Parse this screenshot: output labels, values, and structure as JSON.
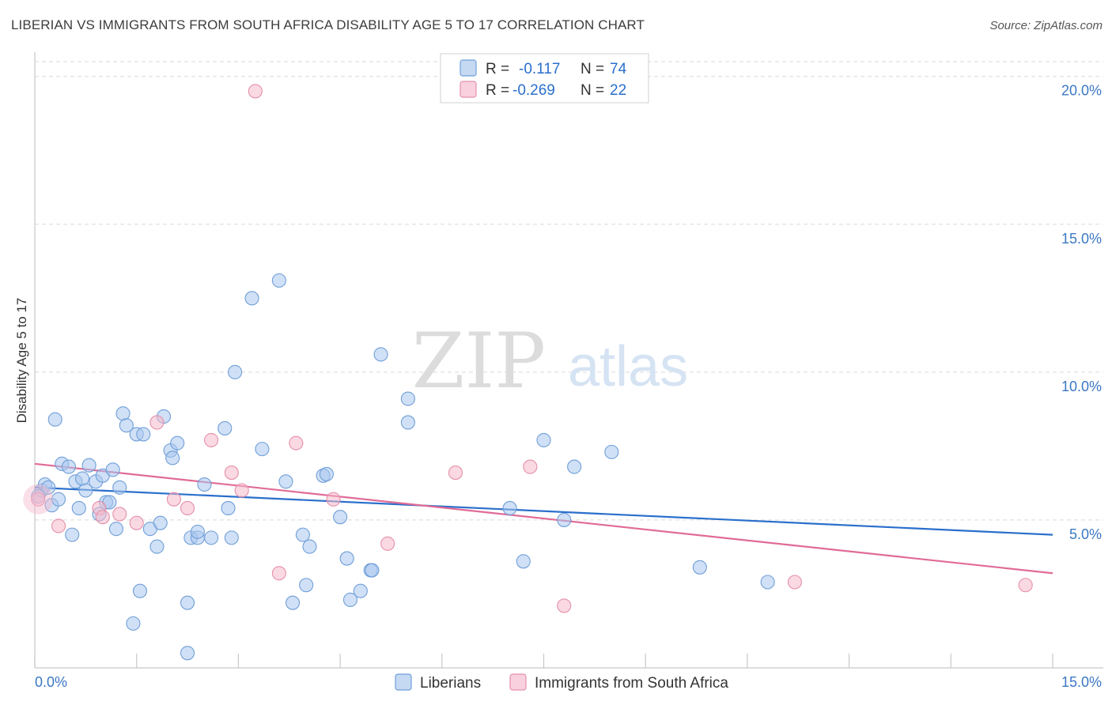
{
  "title": "LIBERIAN VS IMMIGRANTS FROM SOUTH AFRICA DISABILITY AGE 5 TO 17 CORRELATION CHART",
  "source": "Source: ZipAtlas.com",
  "watermark": {
    "zip": "ZIP",
    "atlas": "atlas"
  },
  "colors": {
    "blue_fill": "#a9c7ee",
    "blue_stroke": "#6f9fd8",
    "blue_line": "#2a6fcb",
    "pink_fill": "#f5b9cb",
    "pink_stroke": "#e58fab",
    "pink_line": "#e06b97",
    "tick_label": "#3b78c4",
    "grid": "#d9d9d9"
  },
  "legend_top": {
    "rows": [
      {
        "r_label": "R =",
        "r_value": "-0.117",
        "n_label": "N =",
        "n_value": "74"
      },
      {
        "r_label": "R =",
        "r_value": "-0.269",
        "n_label": "N =",
        "n_value": "22"
      }
    ]
  },
  "chart_data": {
    "type": "scatter",
    "title": "LIBERIAN VS IMMIGRANTS FROM SOUTH AFRICA DISABILITY AGE 5 TO 17 CORRELATION CHART",
    "xlabel": "",
    "ylabel": "Disability Age 5 to 17",
    "xlim": [
      0,
      15
    ],
    "ylim": [
      0,
      20.5
    ],
    "x_tick_labels": [
      "0.0%",
      "15.0%"
    ],
    "y_ticks": [
      5,
      10,
      15,
      20
    ],
    "y_tick_labels": [
      "5.0%",
      "10.0%",
      "15.0%",
      "20.0%"
    ],
    "grid": true,
    "legend_position": "bottom",
    "series": [
      {
        "name": "Liberians",
        "r": -0.117,
        "n": 74,
        "trend": {
          "x": [
            0,
            15
          ],
          "y": [
            6.1,
            4.5
          ]
        },
        "points": [
          [
            0.1,
            6.0
          ],
          [
            0.15,
            6.2
          ],
          [
            0.2,
            6.1
          ],
          [
            0.25,
            5.5
          ],
          [
            0.3,
            8.4
          ],
          [
            0.35,
            5.7
          ],
          [
            0.4,
            6.9
          ],
          [
            0.5,
            6.8
          ],
          [
            0.55,
            4.5
          ],
          [
            0.6,
            6.3
          ],
          [
            0.65,
            5.4
          ],
          [
            0.7,
            6.4
          ],
          [
            0.75,
            6.0
          ],
          [
            0.8,
            6.85
          ],
          [
            0.9,
            6.3
          ],
          [
            0.95,
            5.2
          ],
          [
            1.0,
            6.5
          ],
          [
            1.05,
            5.6
          ],
          [
            1.1,
            5.6
          ],
          [
            1.15,
            6.7
          ],
          [
            1.2,
            4.7
          ],
          [
            1.25,
            6.1
          ],
          [
            1.3,
            8.6
          ],
          [
            1.35,
            8.2
          ],
          [
            1.45,
            1.5
          ],
          [
            1.5,
            7.9
          ],
          [
            1.55,
            2.6
          ],
          [
            1.6,
            7.9
          ],
          [
            1.7,
            4.7
          ],
          [
            1.8,
            4.1
          ],
          [
            1.85,
            4.9
          ],
          [
            1.9,
            8.5
          ],
          [
            2.0,
            7.35
          ],
          [
            2.03,
            7.1
          ],
          [
            2.1,
            7.6
          ],
          [
            2.25,
            0.5
          ],
          [
            2.25,
            2.2
          ],
          [
            2.3,
            4.4
          ],
          [
            2.4,
            4.4
          ],
          [
            2.4,
            4.6
          ],
          [
            2.5,
            6.2
          ],
          [
            2.6,
            4.4
          ],
          [
            2.8,
            8.1
          ],
          [
            2.85,
            5.4
          ],
          [
            2.9,
            4.4
          ],
          [
            2.95,
            10.0
          ],
          [
            3.2,
            12.5
          ],
          [
            3.35,
            7.4
          ],
          [
            3.6,
            13.1
          ],
          [
            3.7,
            6.3
          ],
          [
            3.8,
            2.2
          ],
          [
            3.95,
            4.5
          ],
          [
            4.0,
            2.8
          ],
          [
            4.05,
            4.1
          ],
          [
            4.25,
            6.5
          ],
          [
            4.3,
            6.55
          ],
          [
            4.5,
            5.1
          ],
          [
            4.6,
            3.7
          ],
          [
            4.65,
            2.3
          ],
          [
            4.8,
            2.6
          ],
          [
            4.95,
            3.3
          ],
          [
            4.97,
            3.3
          ],
          [
            5.1,
            10.6
          ],
          [
            5.5,
            9.1
          ],
          [
            5.5,
            8.3
          ],
          [
            7.0,
            5.4
          ],
          [
            7.2,
            3.6
          ],
          [
            7.5,
            7.7
          ],
          [
            7.8,
            5.0
          ],
          [
            7.95,
            6.8
          ],
          [
            8.5,
            7.3
          ],
          [
            9.8,
            3.4
          ],
          [
            10.8,
            2.9
          ],
          [
            0.05,
            5.8
          ]
        ]
      },
      {
        "name": "Immigrants from South Africa",
        "r": -0.269,
        "n": 22,
        "trend": {
          "x": [
            0,
            15
          ],
          "y": [
            6.9,
            3.2
          ]
        },
        "points": [
          [
            0.05,
            5.7
          ],
          [
            0.35,
            4.8
          ],
          [
            0.95,
            5.4
          ],
          [
            1.0,
            5.1
          ],
          [
            1.25,
            5.2
          ],
          [
            1.5,
            4.9
          ],
          [
            1.8,
            8.3
          ],
          [
            2.05,
            5.7
          ],
          [
            2.25,
            5.4
          ],
          [
            2.6,
            7.7
          ],
          [
            2.9,
            6.6
          ],
          [
            3.05,
            6.0
          ],
          [
            3.25,
            19.5
          ],
          [
            3.6,
            3.2
          ],
          [
            3.85,
            7.6
          ],
          [
            4.4,
            5.7
          ],
          [
            5.2,
            4.2
          ],
          [
            6.2,
            6.6
          ],
          [
            7.3,
            6.8
          ],
          [
            7.8,
            2.1
          ],
          [
            11.2,
            2.9
          ],
          [
            14.6,
            2.8
          ]
        ]
      }
    ]
  }
}
